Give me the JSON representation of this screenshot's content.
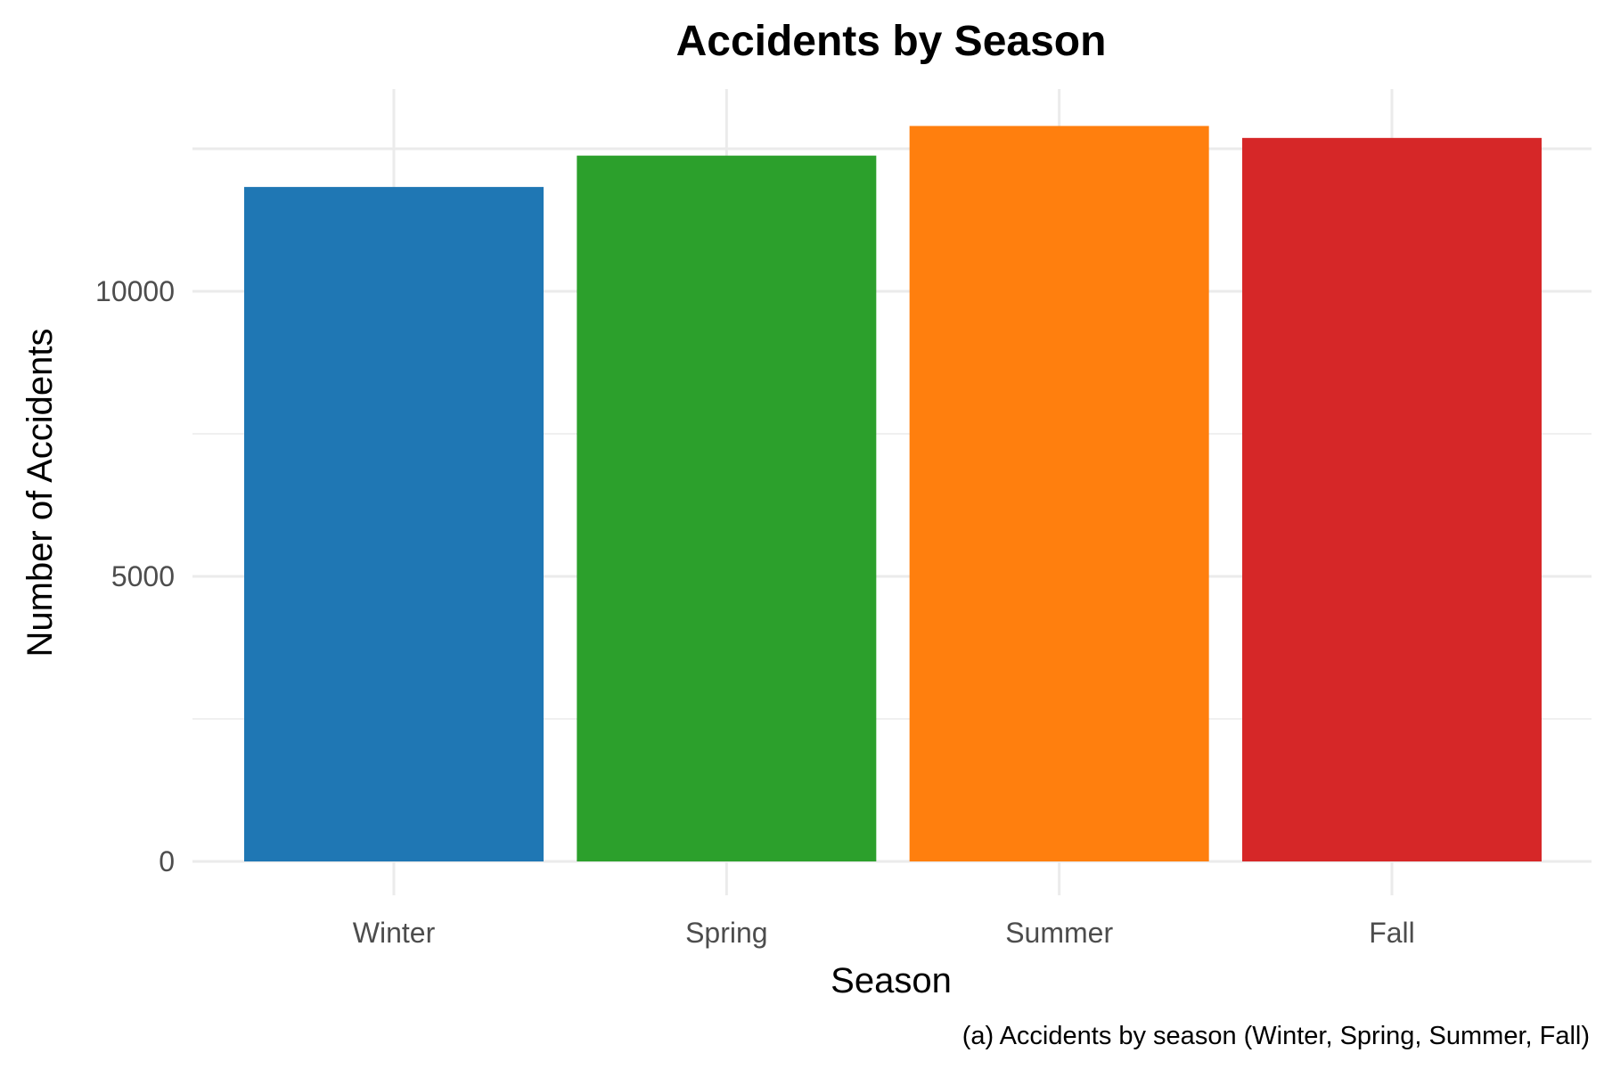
{
  "chart_data": {
    "type": "bar",
    "title": "Accidents by Season",
    "xlabel": "Season",
    "ylabel": "Number of Accidents",
    "categories": [
      "Winter",
      "Spring",
      "Summer",
      "Fall"
    ],
    "values": [
      11830,
      12380,
      12900,
      12690
    ],
    "colors": [
      "#1f77b4",
      "#2ca02c",
      "#ff7f0e",
      "#d62728"
    ],
    "ylim": [
      0,
      13500
    ],
    "yticks": [
      0,
      5000,
      10000
    ],
    "ytick_labels": [
      "0",
      "5000",
      "10000"
    ],
    "grid": true,
    "legend": "none",
    "caption": "(a) Accidents by season (Winter, Spring, Summer, Fall)"
  }
}
